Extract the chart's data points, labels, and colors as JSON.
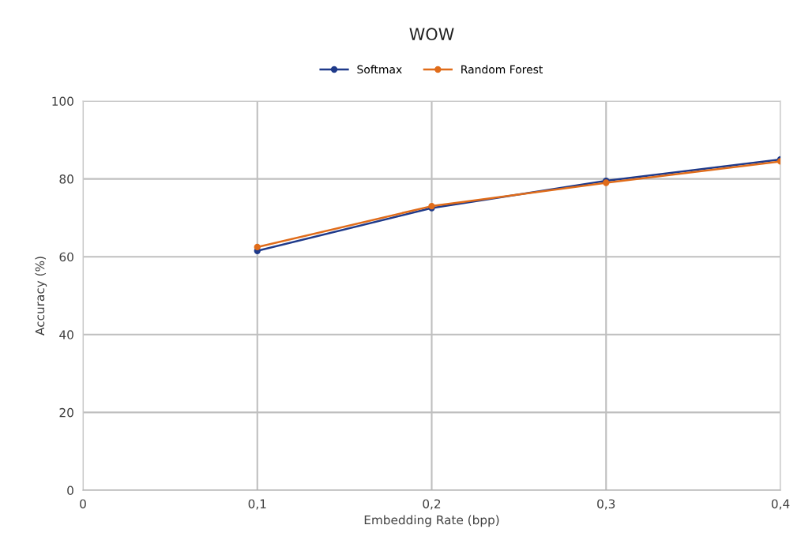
{
  "chart_data": {
    "type": "line",
    "title": "WOW",
    "xlabel": "Embedding Rate (bpp)",
    "ylabel": "Accuracy (%)",
    "x": [
      0.1,
      0.2,
      0.3,
      0.4
    ],
    "series": [
      {
        "name": "Softmax",
        "color": "#1f3a8a",
        "values": [
          61.5,
          72.5,
          79.5,
          85
        ]
      },
      {
        "name": "Random Forest",
        "color": "#e06c1a",
        "values": [
          62.5,
          73,
          79,
          84.5
        ]
      }
    ],
    "xlim": [
      0,
      0.4
    ],
    "xticks": [
      {
        "value": 0,
        "label": "0"
      },
      {
        "value": 0.1,
        "label": "0,1"
      },
      {
        "value": 0.2,
        "label": "0,2"
      },
      {
        "value": 0.3,
        "label": "0,3"
      },
      {
        "value": 0.4,
        "label": "0,4"
      }
    ],
    "ylim": [
      0,
      100
    ],
    "yticks": [
      0,
      20,
      40,
      60,
      80,
      100
    ],
    "grid": true,
    "legend": "top",
    "marker": "circle",
    "line_style": "solid"
  }
}
